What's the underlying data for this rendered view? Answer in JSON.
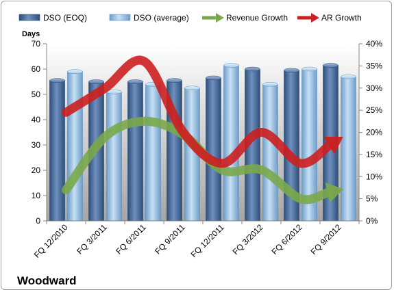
{
  "chart_data": {
    "type": "bar",
    "title": "",
    "company": "Woodward",
    "ylabel": "Days",
    "ylim": [
      0,
      70
    ],
    "y_ticks": [
      "0",
      "10",
      "20",
      "30",
      "40",
      "50",
      "60",
      "70"
    ],
    "y2lim": [
      0,
      0.4
    ],
    "y2_ticks": [
      "0%",
      "5%",
      "10%",
      "15%",
      "20%",
      "25%",
      "30%",
      "35%",
      "40%"
    ],
    "categories": [
      "FQ 12/2010",
      "FQ 3/2011",
      "FQ 6/2011",
      "FQ 9/2011",
      "FQ 12/2011",
      "FQ 3/2012",
      "FQ 6/2012",
      "FQ 9/2012"
    ],
    "series": [
      {
        "name": "DSO (EOQ)",
        "kind": "bar",
        "axis": "left",
        "color": "#4a6a9a",
        "values": [
          55.5,
          55,
          55,
          55.5,
          56.5,
          60,
          59.5,
          61.5
        ]
      },
      {
        "name": "DSO (average)",
        "kind": "bar",
        "axis": "left",
        "color": "#9dc3e6",
        "values": [
          59,
          51,
          54,
          52.5,
          61.5,
          54,
          60,
          57
        ]
      },
      {
        "name": "Revenue Growth",
        "kind": "line",
        "axis": "right",
        "color": "#7aa84a",
        "values": [
          0.07,
          0.19,
          0.225,
          0.195,
          0.115,
          0.115,
          0.05,
          0.07
        ]
      },
      {
        "name": "AR Growth",
        "kind": "line",
        "axis": "right",
        "color": "#cc1f1f",
        "values": [
          0.245,
          0.3,
          0.36,
          0.2,
          0.13,
          0.2,
          0.13,
          0.185
        ]
      }
    ],
    "grid": false,
    "legend": "top"
  }
}
